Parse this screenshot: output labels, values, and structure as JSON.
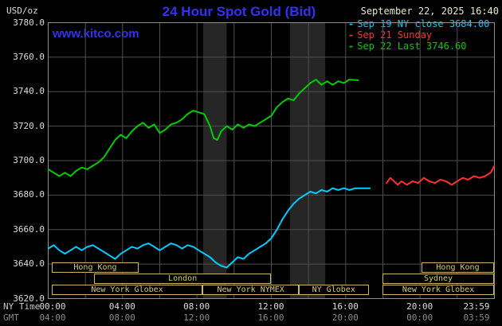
{
  "header": {
    "title": "24 Hour Spot Gold (Bid)",
    "datetime": "September 22, 2025 16:40",
    "unit_label": "USD/oz",
    "watermark": "www.kitco.com"
  },
  "legend": {
    "items": [
      {
        "marker": "-",
        "text": "Sep 19 NY close 3684.00",
        "color": "#00ccff"
      },
      {
        "marker": "-",
        "text": "Sep 21 Sunday",
        "color": "#ff3030"
      },
      {
        "marker": "-",
        "text": "Sep 22 Last 3746.60",
        "color": "#00cc00"
      }
    ]
  },
  "x_axis": {
    "ny_label": "NY Time",
    "gmt_label": "GMT"
  },
  "colors": {
    "background": "#000000",
    "title_blue": "#3232f0",
    "grid": "#4f4f4f",
    "border": "#909090",
    "band": "#262626",
    "axis_text": "#dcdcdc",
    "gmt_text": "#8c8c8c",
    "date_text": "#e8e8d0",
    "session": "#c9b860",
    "session_text": "#d6c878",
    "green": "#00cc00",
    "cyan": "#00ccff",
    "red": "#ff3030"
  },
  "chart_data": {
    "type": "line",
    "title": "24 Hour Spot Gold (Bid)",
    "xlabel": "NY Time (hours)",
    "ylabel": "USD/oz",
    "xlim": [
      0,
      24
    ],
    "ylim": [
      3620,
      3780
    ],
    "grid": true,
    "y_ticks": [
      3780,
      3760,
      3740,
      3720,
      3700,
      3680,
      3660,
      3640,
      3620
    ],
    "x_ticks": [
      {
        "h": 0,
        "ny": "00:00",
        "gmt": "04:00"
      },
      {
        "h": 4,
        "ny": "04:00",
        "gmt": "08:00"
      },
      {
        "h": 8,
        "ny": "08:00",
        "gmt": "12:00"
      },
      {
        "h": 12,
        "ny": "12:00",
        "gmt": "16:00"
      },
      {
        "h": 16,
        "ny": "16:00",
        "gmt": "20:00"
      },
      {
        "h": 20,
        "ny": "20:00",
        "gmt": "00:00"
      },
      {
        "h": 24,
        "ny": "23:59",
        "gmt": "03:59"
      }
    ],
    "grid_x_step_hours": 2,
    "shaded_bands_hours": [
      [
        8.33,
        9.6
      ],
      [
        13.0,
        14.9
      ]
    ],
    "series": [
      {
        "name": "Sep 19 NY close 3684.00",
        "color": "#00ccff",
        "points": [
          [
            0,
            3649
          ],
          [
            0.3,
            3651
          ],
          [
            0.6,
            3648
          ],
          [
            0.9,
            3646
          ],
          [
            1.2,
            3648
          ],
          [
            1.5,
            3650
          ],
          [
            1.8,
            3648
          ],
          [
            2.1,
            3650
          ],
          [
            2.4,
            3651
          ],
          [
            2.7,
            3649
          ],
          [
            3.0,
            3647
          ],
          [
            3.3,
            3645
          ],
          [
            3.6,
            3643
          ],
          [
            3.9,
            3646
          ],
          [
            4.2,
            3648
          ],
          [
            4.5,
            3650
          ],
          [
            4.8,
            3649
          ],
          [
            5.1,
            3651
          ],
          [
            5.4,
            3652
          ],
          [
            5.7,
            3650
          ],
          [
            6.0,
            3648
          ],
          [
            6.3,
            3650
          ],
          [
            6.6,
            3652
          ],
          [
            6.9,
            3651
          ],
          [
            7.2,
            3649
          ],
          [
            7.5,
            3651
          ],
          [
            7.8,
            3650
          ],
          [
            8.1,
            3648
          ],
          [
            8.4,
            3646
          ],
          [
            8.7,
            3644
          ],
          [
            9.0,
            3641
          ],
          [
            9.3,
            3639
          ],
          [
            9.6,
            3638
          ],
          [
            9.9,
            3641
          ],
          [
            10.2,
            3644
          ],
          [
            10.5,
            3643
          ],
          [
            10.8,
            3646
          ],
          [
            11.1,
            3648
          ],
          [
            11.4,
            3650
          ],
          [
            11.7,
            3652
          ],
          [
            12.0,
            3655
          ],
          [
            12.3,
            3660
          ],
          [
            12.6,
            3666
          ],
          [
            12.9,
            3671
          ],
          [
            13.2,
            3675
          ],
          [
            13.5,
            3678
          ],
          [
            13.8,
            3680
          ],
          [
            14.1,
            3682
          ],
          [
            14.4,
            3681
          ],
          [
            14.7,
            3683
          ],
          [
            15.0,
            3682
          ],
          [
            15.3,
            3684
          ],
          [
            15.6,
            3683
          ],
          [
            15.9,
            3684
          ],
          [
            16.2,
            3683
          ],
          [
            16.5,
            3684
          ],
          [
            16.8,
            3684
          ],
          [
            17.1,
            3684
          ],
          [
            17.3,
            3684
          ]
        ]
      },
      {
        "name": "Sep 21 Sunday",
        "color": "#ff3030",
        "points": [
          [
            18.2,
            3687
          ],
          [
            18.4,
            3690
          ],
          [
            18.6,
            3688
          ],
          [
            18.8,
            3686
          ],
          [
            19.0,
            3688
          ],
          [
            19.3,
            3686
          ],
          [
            19.6,
            3688
          ],
          [
            19.9,
            3687
          ],
          [
            20.2,
            3690
          ],
          [
            20.5,
            3688
          ],
          [
            20.8,
            3687
          ],
          [
            21.1,
            3689
          ],
          [
            21.4,
            3688
          ],
          [
            21.7,
            3686
          ],
          [
            22.0,
            3688
          ],
          [
            22.3,
            3690
          ],
          [
            22.6,
            3689
          ],
          [
            22.9,
            3691
          ],
          [
            23.2,
            3690
          ],
          [
            23.5,
            3691
          ],
          [
            23.8,
            3693
          ],
          [
            24.0,
            3697
          ]
        ]
      },
      {
        "name": "Sep 22 Last 3746.60",
        "color": "#00cc00",
        "points": [
          [
            0,
            3695
          ],
          [
            0.3,
            3693
          ],
          [
            0.6,
            3691
          ],
          [
            0.9,
            3693
          ],
          [
            1.2,
            3691
          ],
          [
            1.5,
            3694
          ],
          [
            1.8,
            3696
          ],
          [
            2.1,
            3695
          ],
          [
            2.4,
            3697
          ],
          [
            2.7,
            3699
          ],
          [
            3.0,
            3702
          ],
          [
            3.3,
            3707
          ],
          [
            3.6,
            3712
          ],
          [
            3.9,
            3715
          ],
          [
            4.2,
            3713
          ],
          [
            4.5,
            3717
          ],
          [
            4.8,
            3720
          ],
          [
            5.1,
            3722
          ],
          [
            5.4,
            3719
          ],
          [
            5.7,
            3721
          ],
          [
            6.0,
            3716
          ],
          [
            6.3,
            3718
          ],
          [
            6.6,
            3721
          ],
          [
            6.9,
            3722
          ],
          [
            7.2,
            3724
          ],
          [
            7.5,
            3727
          ],
          [
            7.8,
            3729
          ],
          [
            8.1,
            3728
          ],
          [
            8.4,
            3727
          ],
          [
            8.7,
            3720
          ],
          [
            8.9,
            3713
          ],
          [
            9.1,
            3712
          ],
          [
            9.3,
            3717
          ],
          [
            9.6,
            3720
          ],
          [
            9.9,
            3718
          ],
          [
            10.2,
            3721
          ],
          [
            10.5,
            3719
          ],
          [
            10.8,
            3721
          ],
          [
            11.1,
            3720
          ],
          [
            11.4,
            3722
          ],
          [
            11.7,
            3724
          ],
          [
            12.0,
            3726
          ],
          [
            12.3,
            3731
          ],
          [
            12.6,
            3734
          ],
          [
            12.9,
            3736
          ],
          [
            13.2,
            3735
          ],
          [
            13.5,
            3739
          ],
          [
            13.8,
            3742
          ],
          [
            14.1,
            3745
          ],
          [
            14.4,
            3747
          ],
          [
            14.7,
            3744
          ],
          [
            15.0,
            3746
          ],
          [
            15.3,
            3744
          ],
          [
            15.6,
            3746
          ],
          [
            15.9,
            3745
          ],
          [
            16.2,
            3747
          ],
          [
            16.67,
            3746.6
          ]
        ]
      }
    ],
    "sessions": [
      {
        "label": "Hong Kong",
        "row": 0,
        "start": 0.2,
        "end": 4.9
      },
      {
        "label": "Hong Kong",
        "row": 0,
        "start": 20.1,
        "end": 24
      },
      {
        "label": "London",
        "row": 1,
        "start": 2.5,
        "end": 12.0
      },
      {
        "label": "Sydney",
        "row": 1,
        "start": 18.0,
        "end": 24
      },
      {
        "label": "New York Globex",
        "row": 2,
        "start": 0.2,
        "end": 8.33
      },
      {
        "label": "New York NYMEX",
        "row": 2,
        "start": 8.33,
        "end": 13.5
      },
      {
        "label": "NY Globex",
        "row": 2,
        "start": 13.5,
        "end": 17.25
      },
      {
        "label": "New York Globex",
        "row": 2,
        "start": 18.0,
        "end": 24
      }
    ]
  }
}
